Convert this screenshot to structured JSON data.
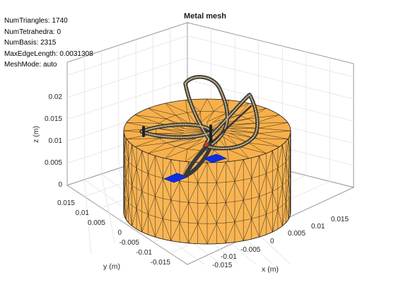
{
  "plot": {
    "title": "Metal mesh",
    "info_lines": [
      "NumTriangles: 1740",
      "NumTetrahedra: 0",
      "NumBasis: 2315",
      "MaxEdgeLength: 0.0031308",
      "MeshMode: auto"
    ],
    "axes": {
      "z_label": "z (m)",
      "y_label": "y (m)",
      "x_label": "x (m)",
      "z_ticks": [
        "0",
        "0.005",
        "0.01",
        "0.015",
        "0.02"
      ],
      "y_ticks": [
        "0.015",
        "0.01",
        "0.005",
        "0",
        "-0.005",
        "-0.01",
        "-0.015"
      ],
      "x_ticks": [
        "0.015",
        "0.01",
        "0.005",
        "0",
        "-0.005",
        "-0.01",
        "-0.015"
      ]
    },
    "colors": {
      "cylinder_fill": "#f9b553",
      "cylinder_top": "#f7b04a",
      "mesh_edge": "#1a1a1a",
      "patch_blue": "#0b2ee6",
      "grid": "#e0e0e0",
      "axis_box": "#9a9a9a"
    }
  }
}
